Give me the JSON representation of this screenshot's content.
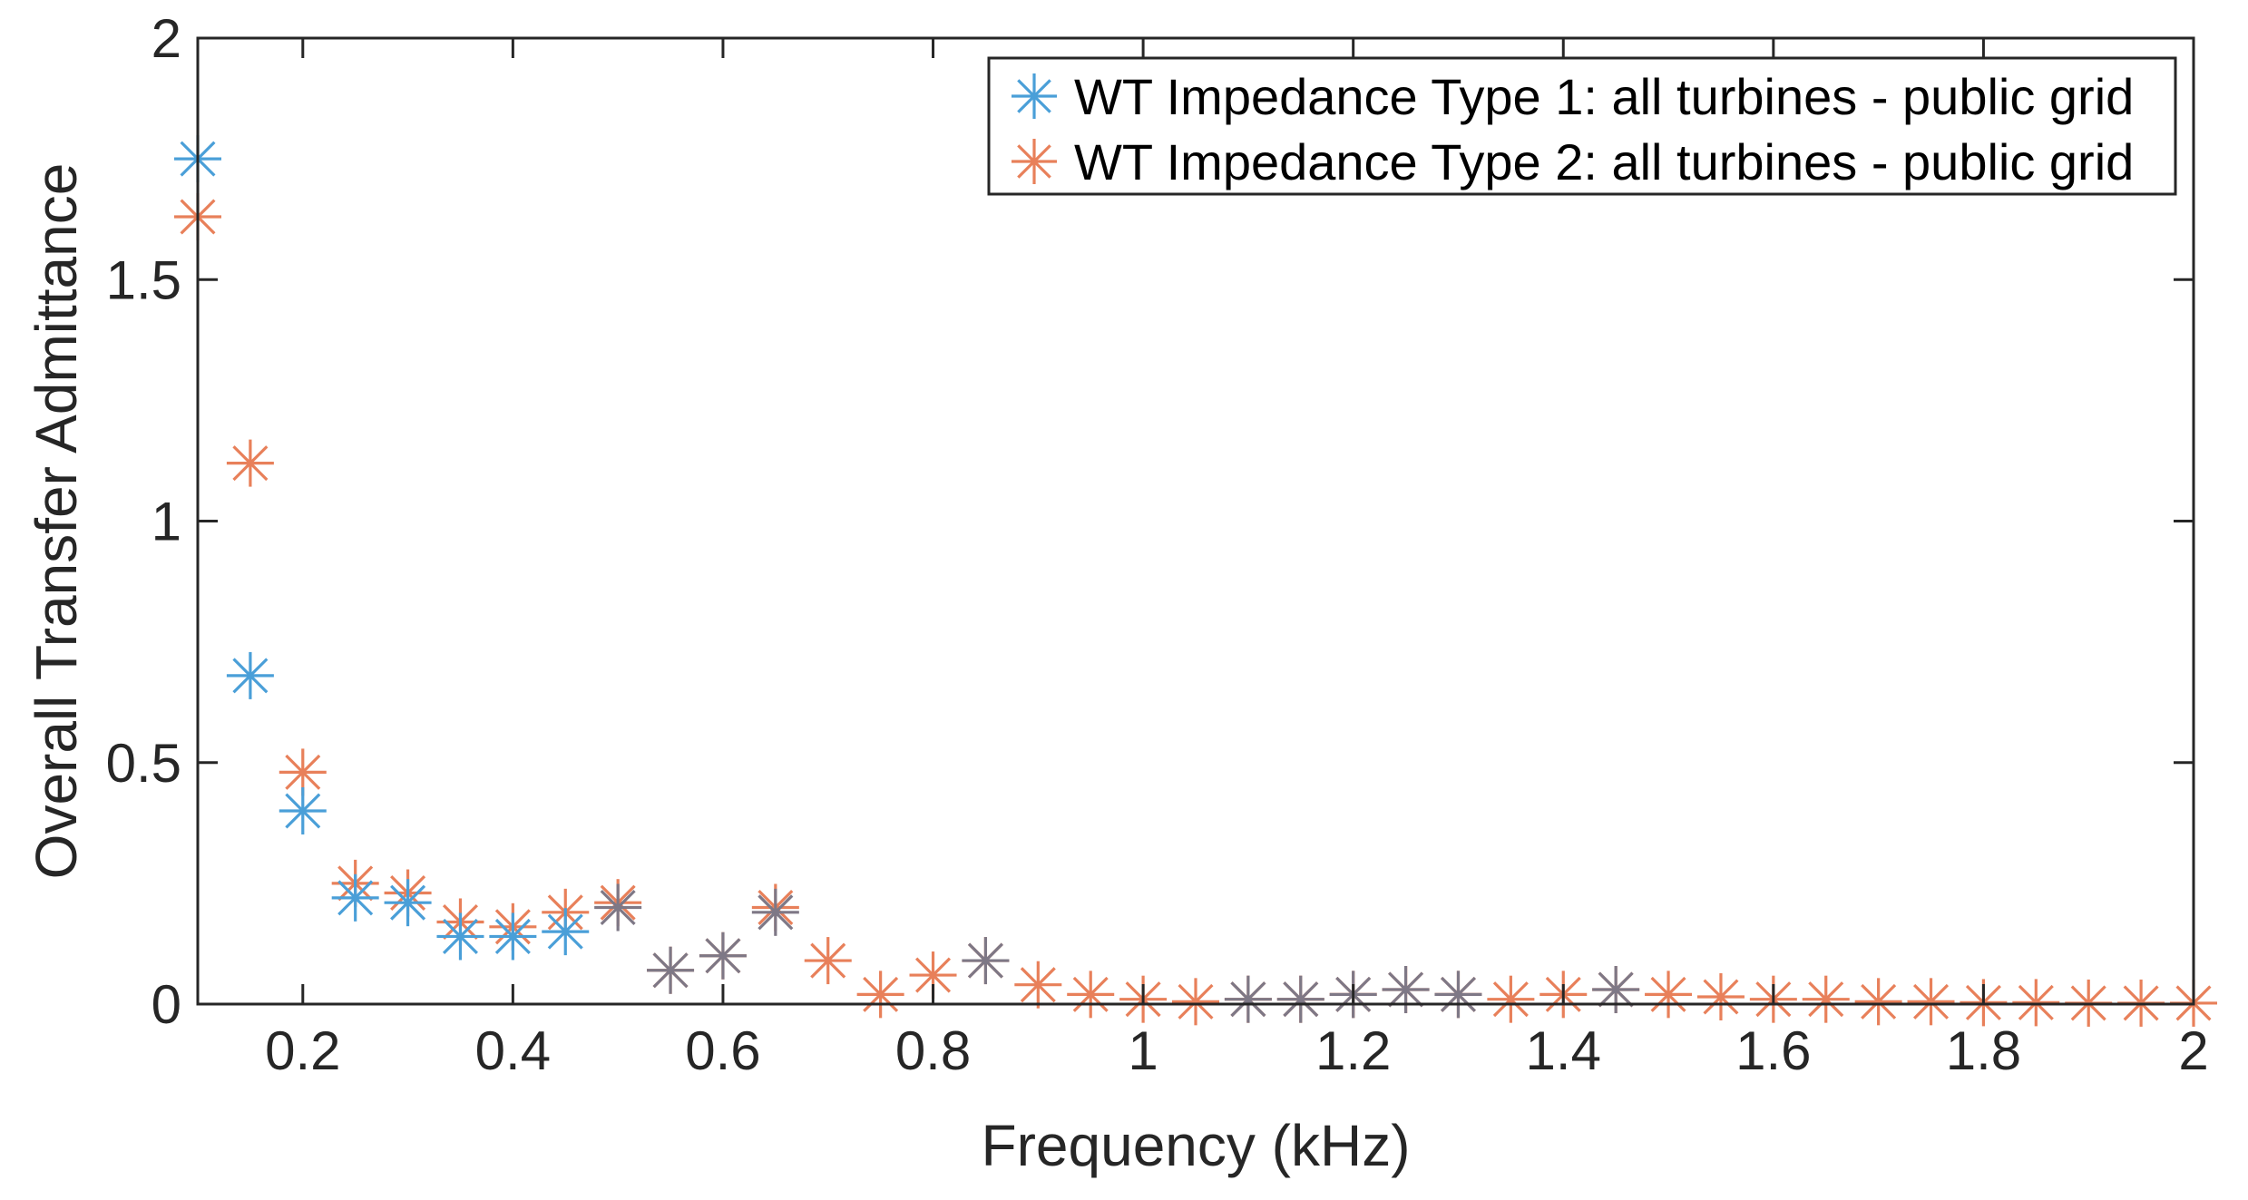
{
  "chart_data": {
    "type": "scatter",
    "title": "",
    "xlabel": "Frequency (kHz)",
    "ylabel": "Overall Transfer Admittance",
    "xlim": [
      0.1,
      2
    ],
    "ylim": [
      0,
      2
    ],
    "x_ticks": [
      0.2,
      0.4,
      0.6,
      0.8,
      1,
      1.2,
      1.4,
      1.6,
      1.8,
      2
    ],
    "x_tick_labels": [
      "0.2",
      "0.4",
      "0.6",
      "0.8",
      "1",
      "1.2",
      "1.4",
      "1.6",
      "1.8",
      "2"
    ],
    "y_ticks": [
      0,
      0.5,
      1,
      1.5,
      2
    ],
    "y_tick_labels": [
      "0",
      "0.5",
      "1",
      "1.5",
      "2"
    ],
    "grid": false,
    "legend_position": "top-right",
    "marker": "asterisk",
    "x": [
      0.1,
      0.15,
      0.2,
      0.25,
      0.3,
      0.35,
      0.4,
      0.45,
      0.5,
      0.55,
      0.6,
      0.65,
      0.7,
      0.75,
      0.8,
      0.85,
      0.9,
      0.95,
      1.0,
      1.05,
      1.1,
      1.15,
      1.2,
      1.25,
      1.3,
      1.35,
      1.4,
      1.45,
      1.5,
      1.55,
      1.6,
      1.65,
      1.7,
      1.75,
      1.8,
      1.85,
      1.9,
      1.95,
      2.0
    ],
    "series": [
      {
        "name": "WT Impedance Type 1: all turbines - public grid",
        "color": "#4a9fd8",
        "values": [
          1.75,
          0.68,
          0.4,
          0.22,
          0.21,
          0.14,
          0.14,
          0.15,
          0.2,
          0.07,
          0.1,
          0.19,
          null,
          null,
          null,
          0.09,
          null,
          null,
          null,
          null,
          0.01,
          0.01,
          0.02,
          0.03,
          0.02,
          null,
          null,
          0.03,
          null,
          null,
          null,
          null,
          null,
          null,
          null,
          null,
          null,
          null,
          null
        ]
      },
      {
        "name": "WT Impedance Type 2: all turbines - public grid",
        "color": "#e8805a",
        "values": [
          1.63,
          1.12,
          0.48,
          0.25,
          0.23,
          0.17,
          0.16,
          0.19,
          0.21,
          0.07,
          0.1,
          0.2,
          0.09,
          0.02,
          0.06,
          0.09,
          0.04,
          0.02,
          0.01,
          0.005,
          0.01,
          0.01,
          0.02,
          0.03,
          0.02,
          0.01,
          0.02,
          0.03,
          0.02,
          0.015,
          0.01,
          0.01,
          0.005,
          0.005,
          0.003,
          0.003,
          0.002,
          0.002,
          0.002
        ]
      }
    ],
    "overlap_color": "#7e7886"
  }
}
